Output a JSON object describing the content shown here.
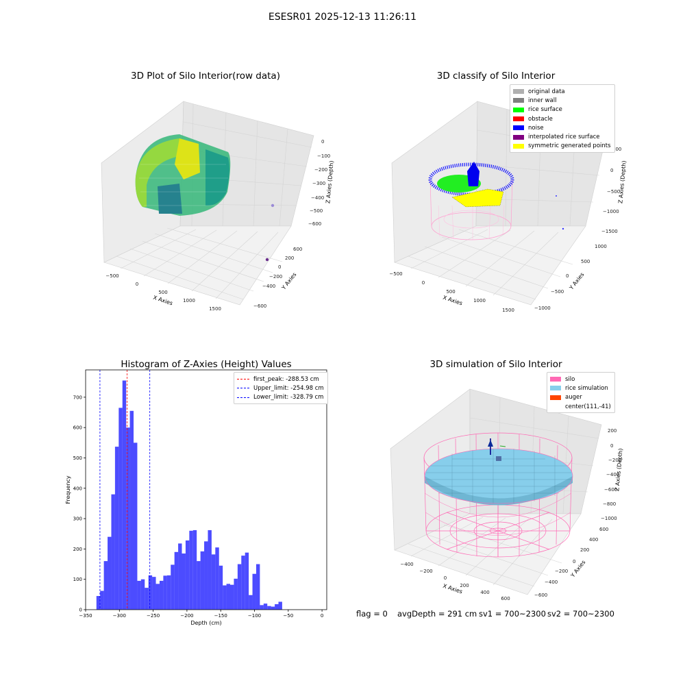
{
  "figure": {
    "suptitle": "ESESR01 2025-12-13 11:26:11"
  },
  "panels": {
    "raw": {
      "title": "3D Plot of Silo Interior(row data)",
      "xlabel": "X Axies",
      "ylabel": "Y Axies",
      "zlabel": "Z Axies (Depth)",
      "xticks": [
        "−500",
        "0",
        "500",
        "1000",
        "1500"
      ],
      "yticks": [
        "−600",
        "−400",
        "−200",
        "0",
        "200",
        "400",
        "600"
      ],
      "zticks": [
        "0",
        "−100",
        "−200",
        "−300",
        "−400",
        "−500",
        "−600"
      ]
    },
    "classify": {
      "title": "3D classify of Silo Interior",
      "xlabel": "X Axies",
      "ylabel": "Y Axies",
      "zlabel": "Z Axies (Depth)",
      "xticks": [
        "−500",
        "0",
        "500",
        "1000",
        "1500"
      ],
      "yticks": [
        "−1000",
        "−500",
        "0",
        "500",
        "1000"
      ],
      "zticks": [
        "500",
        "0",
        "−500",
        "−1000",
        "−1500"
      ],
      "legend": [
        {
          "label": "original data",
          "color": "#b0b0b0"
        },
        {
          "label": "inner wall",
          "color": "#808080"
        },
        {
          "label": "rice surface",
          "color": "#00ff00"
        },
        {
          "label": "obstacle",
          "color": "#ff0000"
        },
        {
          "label": "noise",
          "color": "#0000ff"
        },
        {
          "label": "interpolated rice surface",
          "color": "#800080"
        },
        {
          "label": "symmetric generated points",
          "color": "#ffff00"
        }
      ]
    },
    "simulation": {
      "title": "3D simulation of Silo Interior",
      "xlabel": "X Axies",
      "ylabel": "Y Axies",
      "zlabel": "Z Axies (Depth)",
      "xticks": [
        "−400",
        "−200",
        "0",
        "200",
        "400",
        "600"
      ],
      "yticks": [
        "−600",
        "−400",
        "−200",
        "0",
        "200",
        "400",
        "600"
      ],
      "zticks": [
        "200",
        "0",
        "−200",
        "−400",
        "−600",
        "−800",
        "−1000"
      ],
      "legend": [
        {
          "label": "silo",
          "color": "#ff69b4"
        },
        {
          "label": "rice simulation",
          "color": "#87ceeb"
        },
        {
          "label": "auger",
          "color": "#ff4500"
        },
        {
          "label": "center(111,-41)",
          "color": ""
        }
      ]
    }
  },
  "chart_data": {
    "type": "bar",
    "title": "Histogram of Z-Axies (Height) Values",
    "xlabel": "Depth (cm)",
    "ylabel": "Frequency",
    "bar_color": "#0000ff",
    "bin_start": -334,
    "bin_width": 5.5,
    "values": [
      45,
      62,
      160,
      240,
      380,
      537,
      665,
      755,
      600,
      655,
      550,
      95,
      100,
      72,
      113,
      108,
      85,
      95,
      112,
      113,
      148,
      190,
      218,
      185,
      228,
      260,
      262,
      160,
      192,
      225,
      262,
      182,
      205,
      145,
      80,
      85,
      82,
      102,
      150,
      178,
      188,
      48,
      118,
      150,
      15,
      20,
      12,
      10,
      18,
      26
    ],
    "xlim": [
      -350,
      7
    ],
    "ylim": [
      0,
      790
    ],
    "xticks": [
      -350,
      -300,
      -250,
      -200,
      -150,
      -100,
      -50,
      0
    ],
    "yticks": [
      0,
      100,
      200,
      300,
      400,
      500,
      600,
      700
    ],
    "vlines": [
      {
        "label": "first_peak: -288.53 cm",
        "x": -288.53,
        "color": "#ff0000"
      },
      {
        "label": "Upper_limit: -254.98 cm",
        "x": -254.98,
        "color": "#0000ff"
      },
      {
        "label": "Lower_limit: -328.79 cm",
        "x": -328.79,
        "color": "#0000ff"
      }
    ]
  },
  "footer": {
    "flag": "flag = 0",
    "avg": "avgDepth = 291 cm",
    "sv1": "sv1 = 700~2300",
    "sv2": "sv2 = 700~2300"
  }
}
